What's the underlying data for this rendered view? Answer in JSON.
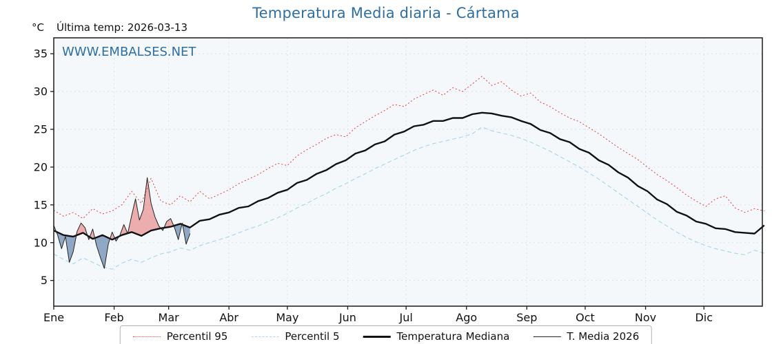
{
  "header": {
    "unit": "°C",
    "last_temp_label": "Última temp: 2026-03-13",
    "watermark": "WWW.EMBALSES.NET"
  },
  "chart_data": {
    "type": "line",
    "title": "Temperatura Media diaria - Cártama",
    "title_color": "#2d6ea3",
    "watermark_color": "#2d6ea3",
    "grid": true,
    "legend_position": "bottom",
    "xlabel": "",
    "ylabel": "°C",
    "xlim": [
      1,
      365
    ],
    "ylim": [
      1.6,
      37.1
    ],
    "y_ticks": [
      5,
      10,
      15,
      20,
      25,
      30,
      35
    ],
    "x_months": [
      "Ene",
      "Feb",
      "Mar",
      "Abr",
      "May",
      "Jun",
      "Jul",
      "Ago",
      "Sep",
      "Oct",
      "Nov",
      "Dic"
    ],
    "month_start_days": [
      1,
      32,
      60,
      91,
      121,
      152,
      182,
      213,
      244,
      274,
      305,
      335
    ],
    "fill_above_color": "rgba(220,60,60,0.40)",
    "fill_below_color": "rgba(88,124,170,0.65)",
    "series": [
      {
        "name": "Percentil 95",
        "color": "#e03b3b",
        "style": "dotted",
        "width": 1,
        "x_start": 1,
        "x_step": 5,
        "values": [
          14.3,
          13.5,
          14.0,
          13.2,
          14.5,
          13.8,
          14.2,
          15.0,
          16.8,
          15.2,
          18.5,
          15.5,
          15.0,
          16.2,
          15.4,
          16.8,
          15.8,
          16.4,
          17.0,
          17.8,
          18.4,
          19.0,
          19.8,
          20.5,
          20.2,
          21.5,
          22.3,
          23.0,
          23.8,
          24.3,
          24.0,
          25.2,
          26.0,
          26.8,
          27.5,
          28.3,
          28.0,
          29.0,
          29.6,
          30.2,
          29.5,
          30.5,
          30.0,
          31.0,
          32.0,
          30.8,
          31.3,
          30.2,
          29.4,
          29.8,
          28.6,
          28.0,
          27.2,
          26.5,
          26.0,
          25.2,
          24.4,
          23.5,
          22.6,
          21.8,
          21.0,
          20.0,
          19.0,
          18.2,
          17.3,
          16.3,
          15.5,
          14.8,
          15.8,
          16.2,
          14.6,
          14.0,
          14.5,
          14.2
        ]
      },
      {
        "name": "Percentil 5",
        "color": "#a9d7ea",
        "style": "dashed",
        "width": 1.2,
        "x_start": 1,
        "x_step": 5,
        "values": [
          8.5,
          7.8,
          7.2,
          8.0,
          7.4,
          6.8,
          6.5,
          7.3,
          7.8,
          7.4,
          8.0,
          8.5,
          8.8,
          9.3,
          9.0,
          9.6,
          10.0,
          10.4,
          10.8,
          11.3,
          11.8,
          12.2,
          12.8,
          13.3,
          13.9,
          14.6,
          15.2,
          15.9,
          16.5,
          17.2,
          17.8,
          18.5,
          19.1,
          19.8,
          20.4,
          21.0,
          21.6,
          22.2,
          22.7,
          23.1,
          23.4,
          23.7,
          24.0,
          24.4,
          25.3,
          24.8,
          24.5,
          24.2,
          23.8,
          23.3,
          22.7,
          22.1,
          21.4,
          20.7,
          20.0,
          19.2,
          18.4,
          17.5,
          16.6,
          15.7,
          14.8,
          13.9,
          13.0,
          12.2,
          11.4,
          10.7,
          10.1,
          9.6,
          9.2,
          8.9,
          8.6,
          8.4,
          9.0,
          8.6
        ]
      },
      {
        "name": "Temperatura Mediana",
        "color": "#111111",
        "style": "solid",
        "width": 2.4,
        "x_start": 1,
        "x_step": 5,
        "values": [
          11.6,
          11.0,
          10.8,
          11.3,
          10.5,
          11.0,
          10.4,
          11.0,
          11.4,
          10.9,
          11.6,
          11.9,
          12.1,
          12.5,
          12.0,
          12.9,
          13.1,
          13.7,
          14.0,
          14.6,
          14.8,
          15.5,
          15.9,
          16.6,
          17.0,
          17.9,
          18.3,
          19.1,
          19.6,
          20.4,
          20.9,
          21.8,
          22.2,
          23.0,
          23.4,
          24.3,
          24.7,
          25.4,
          25.6,
          26.1,
          26.1,
          26.5,
          26.5,
          27.0,
          27.2,
          27.1,
          26.8,
          26.6,
          26.1,
          25.7,
          24.9,
          24.5,
          23.7,
          23.3,
          22.4,
          21.9,
          20.9,
          20.3,
          19.3,
          18.6,
          17.5,
          16.8,
          15.7,
          15.1,
          14.1,
          13.6,
          12.8,
          12.5,
          11.9,
          11.8,
          11.4,
          11.3,
          11.2,
          12.3
        ]
      },
      {
        "name": "T. Media 2026",
        "color": "#222222",
        "style": "solid",
        "width": 1,
        "x_start": 1,
        "x_step": 2,
        "fill_vs_median": true,
        "values": [
          12.3,
          11.0,
          9.2,
          10.8,
          7.4,
          8.8,
          11.5,
          12.6,
          12.0,
          10.4,
          11.8,
          9.6,
          8.0,
          6.6,
          9.8,
          11.4,
          10.2,
          11.0,
          12.4,
          11.2,
          13.6,
          15.8,
          13.0,
          14.4,
          18.6,
          15.2,
          13.4,
          12.2,
          11.6,
          12.8,
          13.2,
          12.0,
          10.4,
          12.6,
          9.8,
          11.2
        ]
      }
    ]
  }
}
